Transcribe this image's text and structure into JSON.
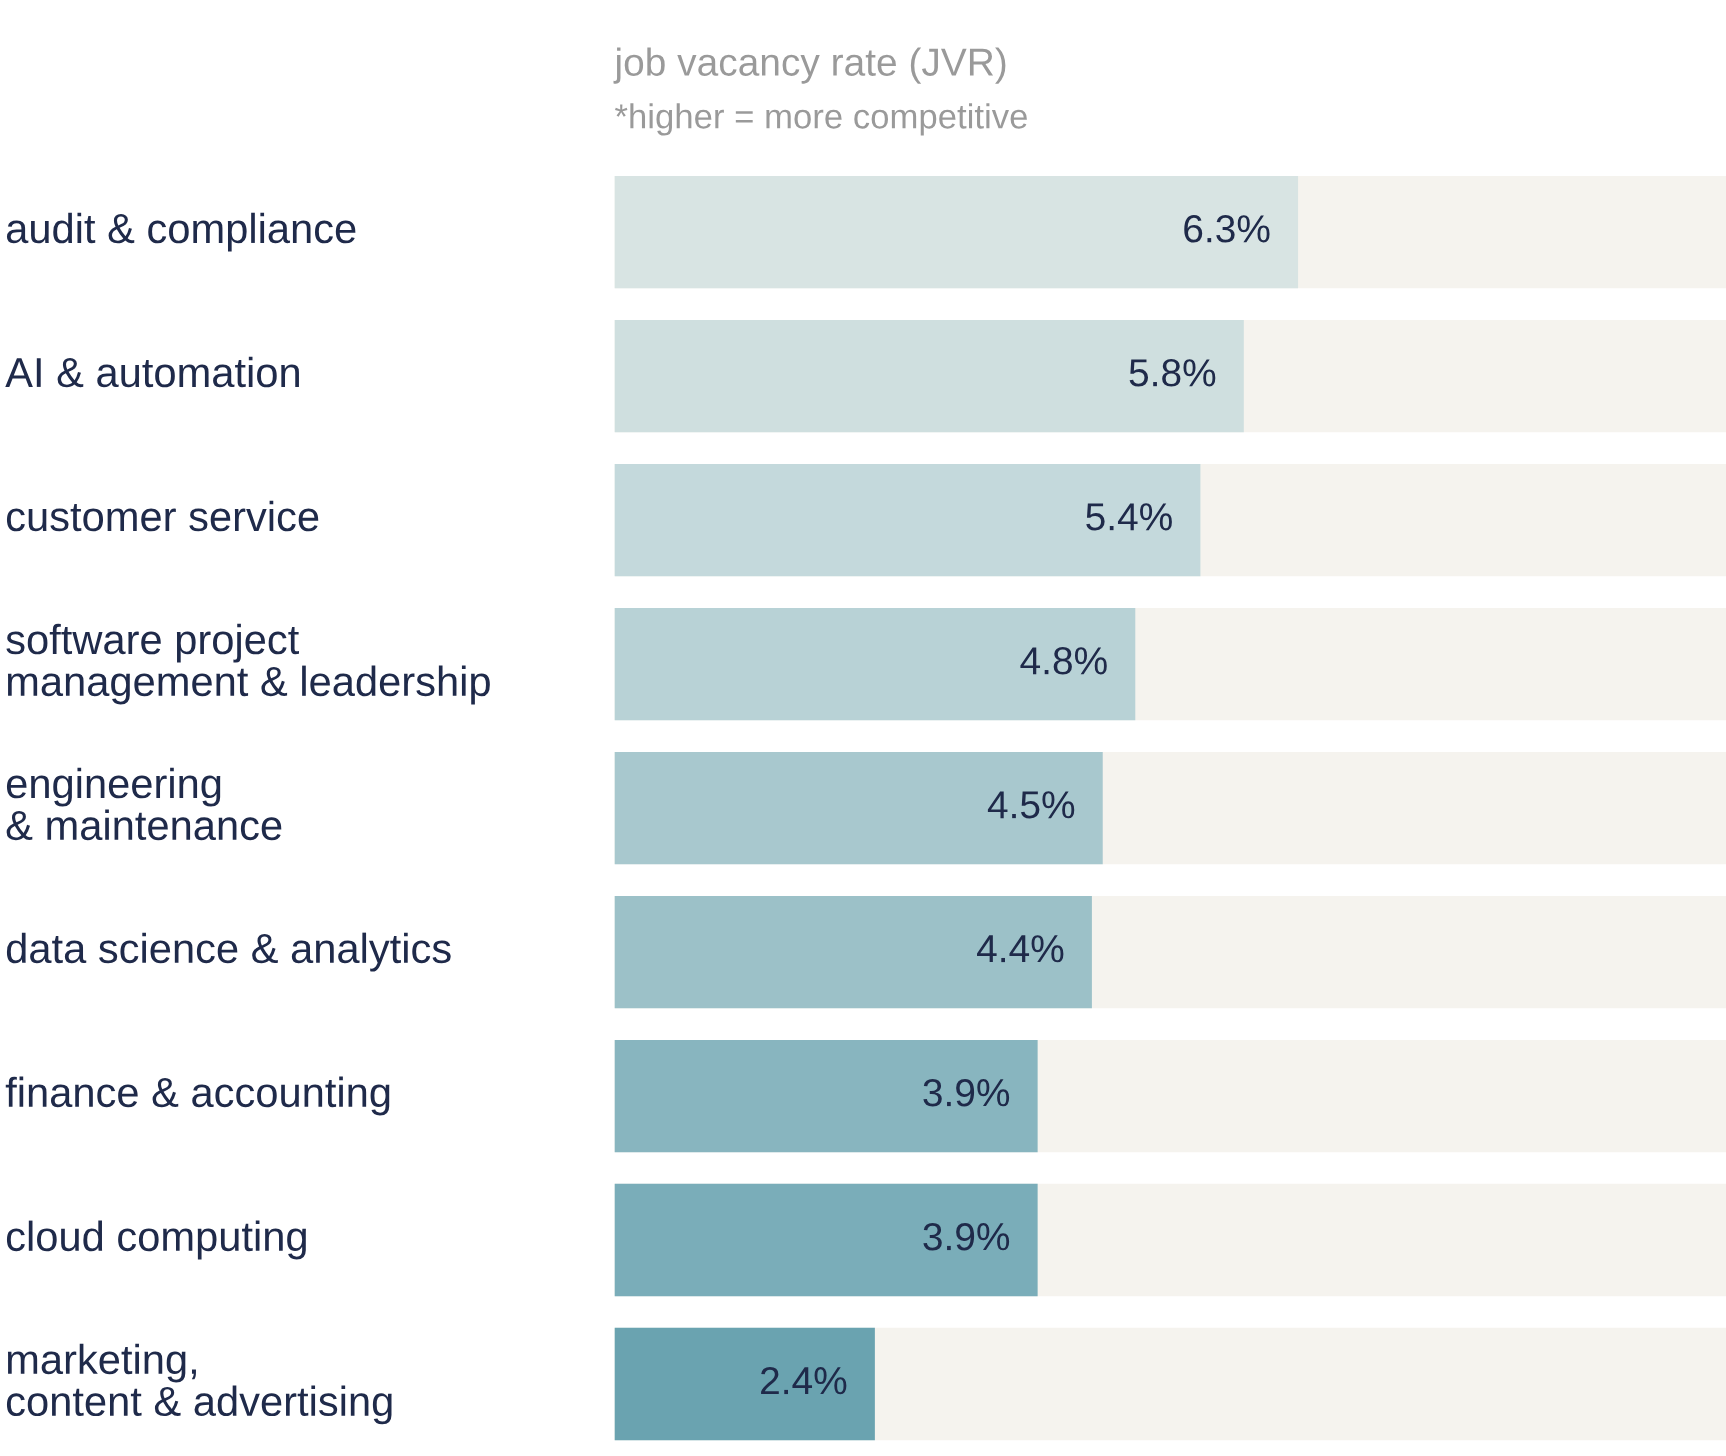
{
  "chart_data": {
    "type": "bar",
    "orientation": "horizontal",
    "title": "job vacancy rate (JVR)",
    "subtitle": "*higher = more competitive",
    "categories": [
      "audit & compliance",
      "AI & automation",
      "customer service",
      "software project\nmanagement & leadership",
      "engineering\n& maintenance",
      "data science & analytics",
      "finance & accounting",
      "cloud computing",
      "marketing,\ncontent & advertising"
    ],
    "values": [
      6.3,
      5.8,
      5.4,
      4.8,
      4.5,
      4.4,
      3.9,
      3.9,
      2.4
    ],
    "colors": [
      "#d8e4e3",
      "#cfdfdf",
      "#c4d9dc",
      "#b8d2d6",
      "#a8c8ce",
      "#9cc1c8",
      "#88b5bf",
      "#7aadb9",
      "#6aa3b0"
    ],
    "value_labels": [
      "6.3%",
      "5.8%",
      "5.4%",
      "4.8%",
      "4.5%",
      "4.4%",
      "3.9%",
      "3.9%",
      "2.4%"
    ]
  }
}
